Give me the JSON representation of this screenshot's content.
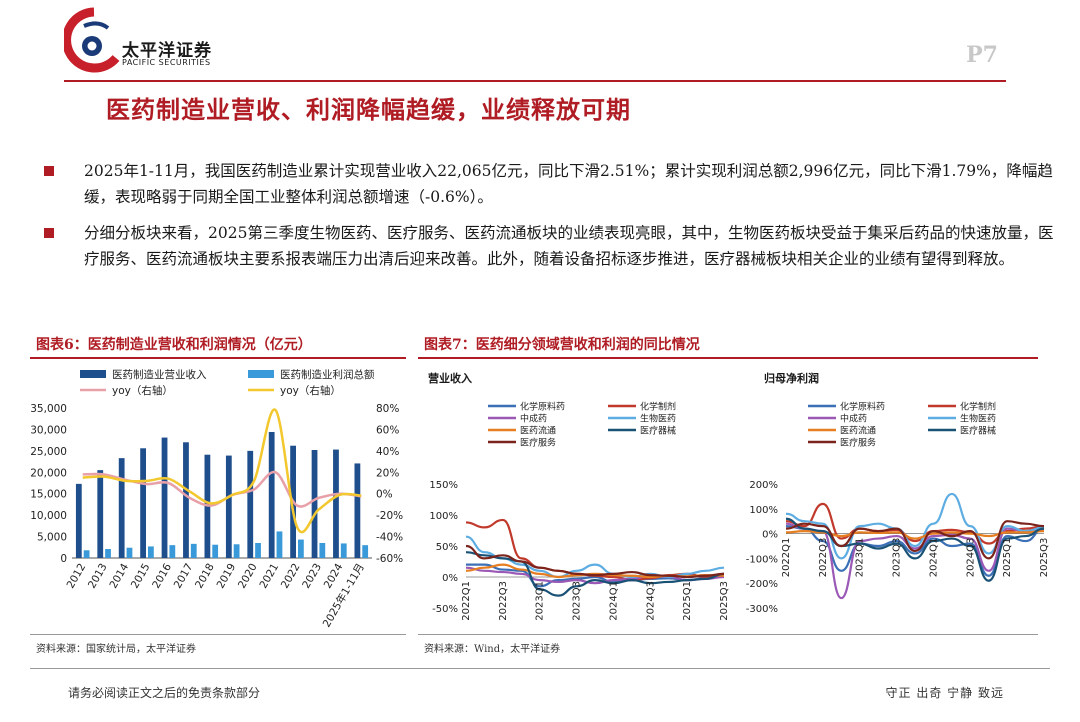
{
  "header": {
    "logo_cn": "太平洋证券",
    "logo_en": "PACIFIC SECURITIES",
    "page_num": "P7"
  },
  "title": "医药制造业营收、利润降幅趋缓，业绩释放可期",
  "bullets": [
    "2025年1-11月，我国医药制造业累计实现营业收入22,065亿元，同比下滑2.51%；累计实现利润总额2,996亿元，同比下滑1.79%，降幅趋缓，表现略弱于同期全国工业整体利润总额增速（-0.6%）。",
    "分细分板块来看，2025第三季度生物医药、医疗服务、医药流通板块的业绩表现亮眼，其中，生物医药板块受益于集采后药品的快速放量，医疗服务、医药流通板块主要系报表端压力出清后迎来改善。此外，随着设备招标逐步推进，医疗器械板块相关企业的业绩有望得到释放。"
  ],
  "fig6": {
    "title": "图表6：医药制造业营收和利润情况（亿元）",
    "source": "资料来源：国家统计局，太平洋证券"
  },
  "fig7": {
    "title": "图表7：医药细分领域营收和利润的同比情况",
    "source": "资料来源：Wind，太平洋证券",
    "sub_left": "营业收入",
    "sub_right": "归母净利润"
  },
  "footer": {
    "left": "请务必阅读正文之后的免责条款部分",
    "right": "守正 出奇 宁静 致远"
  },
  "colors": {
    "brand_red": "#b01c24",
    "revenue_bar": "#1f4e8c",
    "profit_bar": "#3a9ad9",
    "revenue_yoy": "#e8a0a8",
    "profit_yoy": "#f2c82e"
  },
  "chart_data": [
    {
      "type": "bar",
      "title": "医药制造业营收和利润情况（亿元）",
      "categories": [
        "2012",
        "2013",
        "2014",
        "2015",
        "2016",
        "2017",
        "2018",
        "2019",
        "2020",
        "2021",
        "2022",
        "2023",
        "2024",
        "2025年1-11月"
      ],
      "series": [
        {
          "name": "医药制造业营业收入",
          "axis": "left",
          "kind": "bar",
          "values": [
            17300,
            20500,
            23300,
            25600,
            28100,
            27000,
            24100,
            23900,
            25000,
            29400,
            26200,
            25200,
            25300,
            22065
          ]
        },
        {
          "name": "医药制造业利润总额",
          "axis": "left",
          "kind": "bar",
          "values": [
            1800,
            2100,
            2400,
            2700,
            3000,
            3300,
            3100,
            3200,
            3500,
            6200,
            4300,
            3500,
            3400,
            2996
          ]
        },
        {
          "name": "yoy（右轴）",
          "axis": "right",
          "kind": "line",
          "color_ref": "revenue_yoy",
          "values": [
            18,
            18,
            13,
            9,
            10,
            -4,
            -11,
            -1,
            4,
            20,
            -11,
            -4,
            0,
            -2.5
          ]
        },
        {
          "name": "yoy（右轴）",
          "axis": "right",
          "kind": "line",
          "color_ref": "profit_yoy",
          "values": [
            15,
            16,
            12,
            12,
            14,
            2,
            -9,
            -1,
            12,
            78,
            -31,
            -15,
            -1,
            -1.8
          ]
        }
      ],
      "ylim_left": [
        0,
        35000
      ],
      "yticks_left": [
        "0",
        "5,000",
        "10,000",
        "15,000",
        "20,000",
        "25,000",
        "30,000",
        "35,000"
      ],
      "ylim_right": [
        -60,
        80
      ],
      "yticks_right": [
        "-60%",
        "-40%",
        "-20%",
        "0%",
        "20%",
        "40%",
        "60%",
        "80%"
      ]
    },
    {
      "type": "line",
      "title": "营业收入",
      "categories": [
        "2022Q1",
        "2022Q2",
        "2022Q3",
        "2022Q4",
        "2023Q1",
        "2023Q2",
        "2023Q3",
        "2023Q4",
        "2024Q1",
        "2024Q2",
        "2024Q3",
        "2024Q4",
        "2025Q1",
        "2025Q2",
        "2025Q3"
      ],
      "x_tick_labels": [
        "2022Q1",
        "2022Q3",
        "2023Q1",
        "2023Q3",
        "2024Q1",
        "2024Q3",
        "2025Q1",
        "2025Q3"
      ],
      "ylim": [
        -50,
        150
      ],
      "yticks": [
        "-50%",
        "0%",
        "50%",
        "100%",
        "150%"
      ],
      "series": [
        {
          "name": "化学原料药",
          "color": "#3b6fb6",
          "values": [
            20,
            20,
            12,
            10,
            -15,
            -5,
            -3,
            0,
            -8,
            -5,
            -3,
            -2,
            -5,
            -2,
            2
          ]
        },
        {
          "name": "化学制剂",
          "color": "#c0392b",
          "values": [
            88,
            80,
            92,
            30,
            15,
            10,
            5,
            2,
            0,
            -5,
            -2,
            3,
            5,
            0,
            5
          ]
        },
        {
          "name": "中成药",
          "color": "#9b59b6",
          "values": [
            15,
            10,
            8,
            5,
            -5,
            -8,
            -5,
            -10,
            -5,
            -3,
            2,
            0,
            -5,
            -3,
            0
          ]
        },
        {
          "name": "生物医药",
          "color": "#5dade2",
          "values": [
            65,
            40,
            30,
            20,
            10,
            0,
            10,
            20,
            5,
            0,
            5,
            0,
            5,
            10,
            15
          ]
        },
        {
          "name": "医药流通",
          "color": "#e67e22",
          "values": [
            10,
            15,
            20,
            12,
            5,
            0,
            3,
            5,
            3,
            2,
            0,
            2,
            1,
            3,
            2
          ]
        },
        {
          "name": "医疗器械",
          "color": "#1a5276",
          "values": [
            40,
            35,
            30,
            25,
            -20,
            -30,
            -15,
            -5,
            -10,
            -5,
            -10,
            -8,
            -5,
            -3,
            5
          ]
        },
        {
          "name": "医疗服务",
          "color": "#7b241c",
          "values": [
            50,
            30,
            35,
            25,
            15,
            10,
            5,
            3,
            5,
            8,
            3,
            2,
            0,
            2,
            5
          ]
        }
      ]
    },
    {
      "type": "line",
      "title": "归母净利润",
      "categories": [
        "2022Q1",
        "2022Q2",
        "2022Q3",
        "2022Q4",
        "2023Q1",
        "2023Q2",
        "2023Q3",
        "2023Q4",
        "2024Q1",
        "2024Q2",
        "2024Q3",
        "2024Q4",
        "2025Q1",
        "2025Q2",
        "2025Q3"
      ],
      "x_tick_labels": [
        "2022Q1",
        "2022Q3",
        "2023Q1",
        "2023Q3",
        "2024Q1",
        "2024Q3",
        "2025Q1",
        "2025Q3"
      ],
      "ylim": [
        -300,
        200
      ],
      "yticks": [
        "-300%",
        "-200%",
        "-100%",
        "0%",
        "100%",
        "200%"
      ],
      "series": [
        {
          "name": "化学原料药",
          "color": "#3b6fb6",
          "values": [
            30,
            20,
            -30,
            -150,
            -40,
            -50,
            -30,
            -80,
            -20,
            -50,
            -40,
            -170,
            -10,
            -30,
            20
          ]
        },
        {
          "name": "化学制剂",
          "color": "#c0392b",
          "values": [
            50,
            30,
            120,
            -20,
            20,
            10,
            15,
            -30,
            10,
            15,
            5,
            -40,
            10,
            20,
            30
          ]
        },
        {
          "name": "中成药",
          "color": "#9b59b6",
          "values": [
            40,
            20,
            10,
            -260,
            -30,
            -20,
            -10,
            -60,
            -10,
            -5,
            -20,
            -150,
            20,
            10,
            15
          ]
        },
        {
          "name": "生物医药",
          "color": "#5dade2",
          "values": [
            80,
            50,
            40,
            -100,
            30,
            40,
            20,
            -50,
            40,
            160,
            30,
            -80,
            30,
            10,
            25
          ]
        },
        {
          "name": "医药流通",
          "color": "#e67e22",
          "values": [
            5,
            10,
            5,
            -10,
            5,
            3,
            5,
            -20,
            0,
            5,
            0,
            -10,
            5,
            5,
            10
          ]
        },
        {
          "name": "医疗器械",
          "color": "#1a5276",
          "values": [
            60,
            20,
            10,
            -50,
            -40,
            -60,
            -40,
            -100,
            -30,
            -20,
            -50,
            -190,
            -20,
            -10,
            20
          ]
        },
        {
          "name": "医疗服务",
          "color": "#7b241c",
          "values": [
            20,
            40,
            30,
            -50,
            20,
            10,
            20,
            -70,
            10,
            -10,
            10,
            -100,
            50,
            40,
            30
          ]
        }
      ]
    }
  ]
}
